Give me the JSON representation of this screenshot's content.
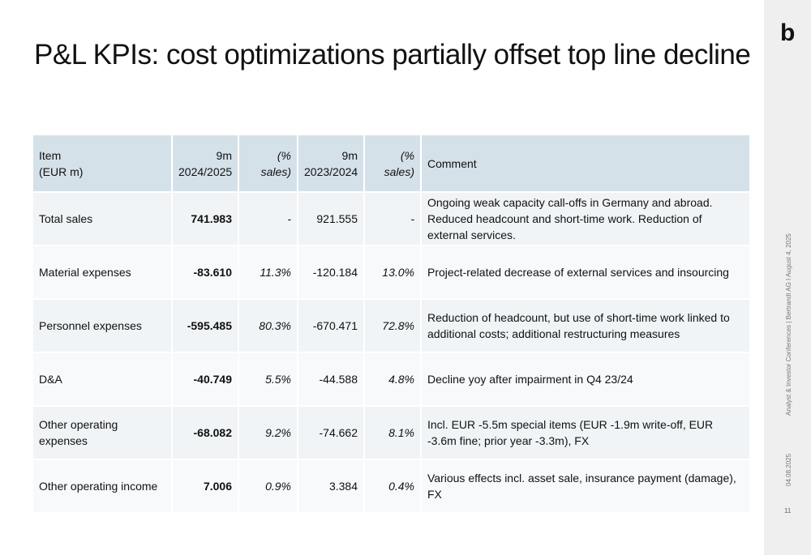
{
  "title": "P&L KPIs: cost optimizations partially offset top line decline",
  "logo": "b",
  "sidebar": {
    "meta": "Analyst & Investor Conferences | Bertrandt AG I August 4, 2025",
    "date": "04.08.2025",
    "page": "11"
  },
  "table": {
    "headers": {
      "item": "Item\n(EUR m)",
      "cur": "9m\n2024/2025",
      "cur_pct": "(% sales)",
      "prev": "9m\n2023/2024",
      "prev_pct": "(% sales)",
      "comment": "Comment"
    },
    "rows": [
      {
        "item": "Total sales",
        "cur": "741.983",
        "cur_pct": "-",
        "prev": "921.555",
        "prev_pct": "-",
        "comment": "Ongoing weak capacity call-offs in Germany and abroad. Reduced headcount and short-time work. Reduction of external services."
      },
      {
        "item": "Material expenses",
        "cur": "-83.610",
        "cur_pct": "11.3%",
        "prev": "-120.184",
        "prev_pct": "13.0%",
        "comment": "Project-related decrease of external services and insourcing"
      },
      {
        "item": "Personnel expenses",
        "cur": "-595.485",
        "cur_pct": "80.3%",
        "prev": "-670.471",
        "prev_pct": "72.8%",
        "comment": "Reduction of headcount, but use of short-time work linked to additional costs; additional restructuring measures"
      },
      {
        "item": "D&A",
        "cur": "-40.749",
        "cur_pct": "5.5%",
        "prev": "-44.588",
        "prev_pct": "4.8%",
        "comment": "Decline yoy after impairment in Q4 23/24"
      },
      {
        "item": "Other operating expenses",
        "cur": "-68.082",
        "cur_pct": "9.2%",
        "prev": "-74.662",
        "prev_pct": "8.1%",
        "comment": "Incl. EUR -5.5m special items (EUR -1.9m write-off, EUR -3.6m fine; prior year -3.3m), FX"
      },
      {
        "item": "Other operating income",
        "cur": "7.006",
        "cur_pct": "0.9%",
        "prev": "3.384",
        "prev_pct": "0.4%",
        "comment": "Various effects incl. asset sale, insurance payment (damage), FX"
      }
    ]
  }
}
